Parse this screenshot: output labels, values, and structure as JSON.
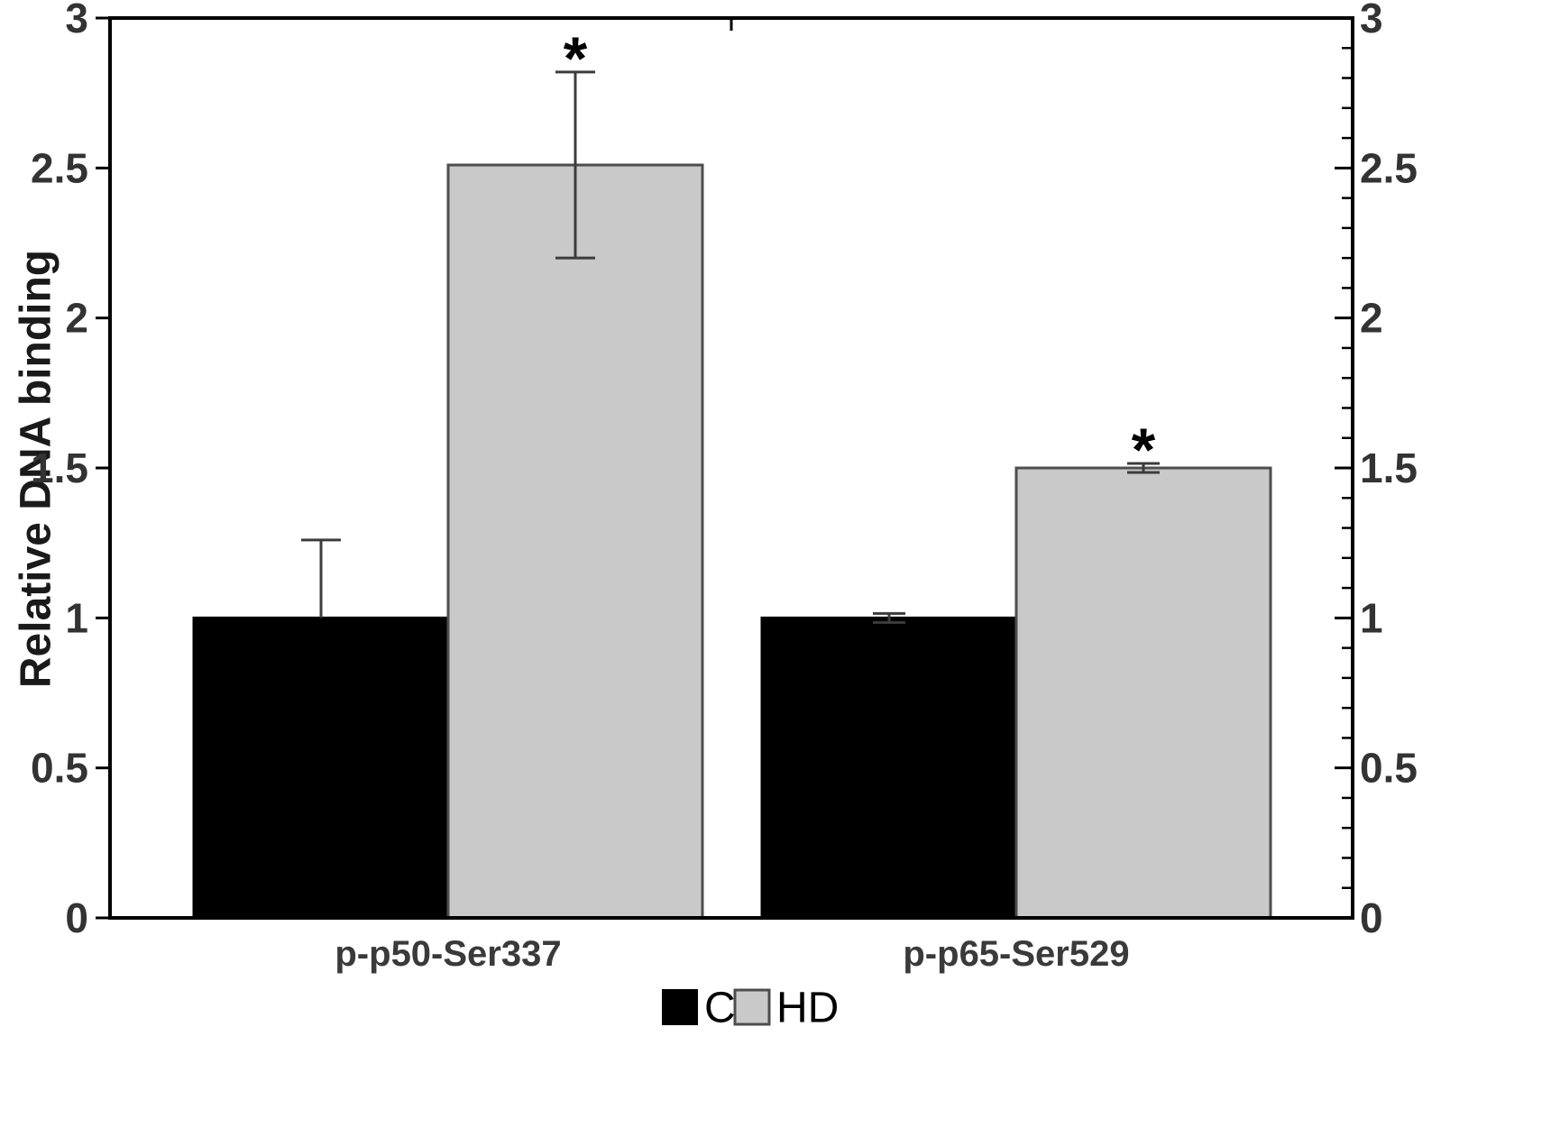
{
  "chart_data": {
    "type": "bar",
    "title": "",
    "ylabel": "Relative DNA binding",
    "xlabel": "",
    "categories": [
      "p-p50-Ser337",
      "p-p65-Ser529"
    ],
    "series": [
      {
        "name": "C",
        "color": "#000000",
        "border": "#000000",
        "values": [
          1.0,
          1.0
        ],
        "errors_plus": [
          0.26,
          0.015
        ],
        "errors_minus": [
          0,
          0.015
        ],
        "significance": [
          "",
          ""
        ]
      },
      {
        "name": "HD",
        "color": "#c9c9c9",
        "border": "#4d4d4d",
        "values": [
          2.51,
          1.5
        ],
        "errors_plus": [
          0.31,
          0.015
        ],
        "errors_minus": [
          0.31,
          0.015
        ],
        "significance": [
          "*",
          "*"
        ]
      }
    ],
    "ylim": [
      0,
      3
    ],
    "ytick_step": 0.5,
    "yminor_step": 0.1,
    "yticks": [
      "0",
      "0.5",
      "1",
      "1.5",
      "2",
      "2.5",
      "3"
    ],
    "grid": false,
    "legend_position": "bottom",
    "error_bar_color": "#3c3c3c"
  }
}
